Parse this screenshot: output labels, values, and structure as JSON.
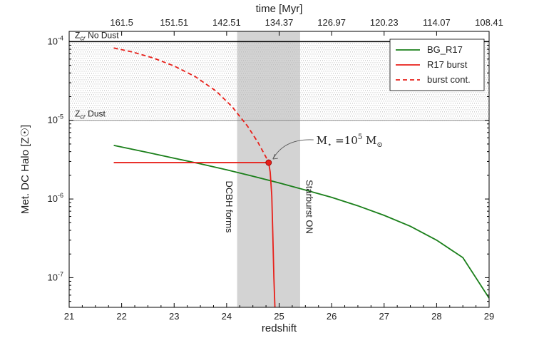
{
  "chart_data": {
    "type": "line",
    "xlabel": "redshift",
    "x2label": "time [Myr]",
    "ylabel": "Met. DC Halo [Z☉]",
    "xlim": [
      21,
      29
    ],
    "ylim": [
      4.2e-08,
      0.000135
    ],
    "yscale": "log",
    "x_ticks": [
      "21",
      "22",
      "23",
      "24",
      "25",
      "26",
      "27",
      "28",
      "29"
    ],
    "x2_ticks": [
      "161.5",
      "151.51",
      "142.51",
      "134.37",
      "126.97",
      "120.23",
      "114.07",
      "108.41"
    ],
    "y_ticks": [
      {
        "value": 1e-07,
        "base": "10",
        "exp": "-7"
      },
      {
        "value": 1e-06,
        "base": "10",
        "exp": "-6"
      },
      {
        "value": 1e-05,
        "base": "10",
        "exp": "-5"
      },
      {
        "value": 0.0001,
        "base": "10",
        "exp": "-4"
      }
    ],
    "series": [
      {
        "name": "BG_R17",
        "color": "#1a7f1a",
        "style": "solid",
        "x": [
          21.85,
          22.5,
          23.0,
          23.5,
          24.0,
          24.5,
          25.0,
          25.5,
          26.0,
          26.5,
          27.0,
          27.5,
          28.0,
          28.5,
          29.0
        ],
        "y": [
          4.8e-06,
          3.9e-06,
          3.3e-06,
          2.8e-06,
          2.35e-06,
          1.95e-06,
          1.6e-06,
          1.3e-06,
          1.05e-06,
          8.2e-07,
          6.2e-07,
          4.5e-07,
          3e-07,
          1.8e-07,
          5.5e-08
        ]
      },
      {
        "name": "R17 burst",
        "color": "#e8201a",
        "style": "solid",
        "x": [
          21.85,
          24.8,
          24.83,
          24.86,
          24.88,
          24.9,
          24.91,
          24.92
        ],
        "y": [
          2.9e-06,
          2.9e-06,
          2.2e-06,
          1.1e-06,
          3.5e-07,
          1e-07,
          6.5e-08,
          4.2e-08
        ]
      },
      {
        "name": "burst cont.",
        "color": "#e8201a",
        "style": "dashed",
        "x": [
          21.85,
          22.2,
          22.6,
          23.0,
          23.4,
          23.8,
          24.1,
          24.4,
          24.6,
          24.75,
          24.8
        ],
        "y": [
          8.3e-05,
          7.4e-05,
          6.2e-05,
          4.9e-05,
          3.6e-05,
          2.35e-05,
          1.5e-05,
          8.4e-06,
          5.2e-06,
          3.4e-06,
          2.9e-06
        ]
      }
    ],
    "shaded_region": {
      "x": [
        24.2,
        25.4
      ],
      "color": "#d3d3d3"
    },
    "hlines": [
      {
        "value": 0.0001,
        "label_main": "Z",
        "label_sub": "cr",
        "label_rest": " No Dust",
        "color": "#000000"
      },
      {
        "value": 1e-05,
        "label_main": "Z",
        "label_sub": "cr",
        "label_rest": " Dust",
        "color": "#888888"
      }
    ],
    "vertical_labels": [
      {
        "x": 24.2,
        "text": "DCBH forms"
      },
      {
        "x": 25.4,
        "text": "Starburst ON"
      }
    ],
    "marker": {
      "x": 24.8,
      "y": 2.9e-06,
      "color": "#e8201a"
    },
    "annotation": {
      "text_left": "M",
      "text_sub": "⋆",
      "text_mid": " =10",
      "text_sup": "5",
      "text_right": " M",
      "text_sub2": "⊙",
      "x": 24.8,
      "y": 2.9e-06
    },
    "legend": {
      "position": "top-right"
    },
    "grid": false
  }
}
